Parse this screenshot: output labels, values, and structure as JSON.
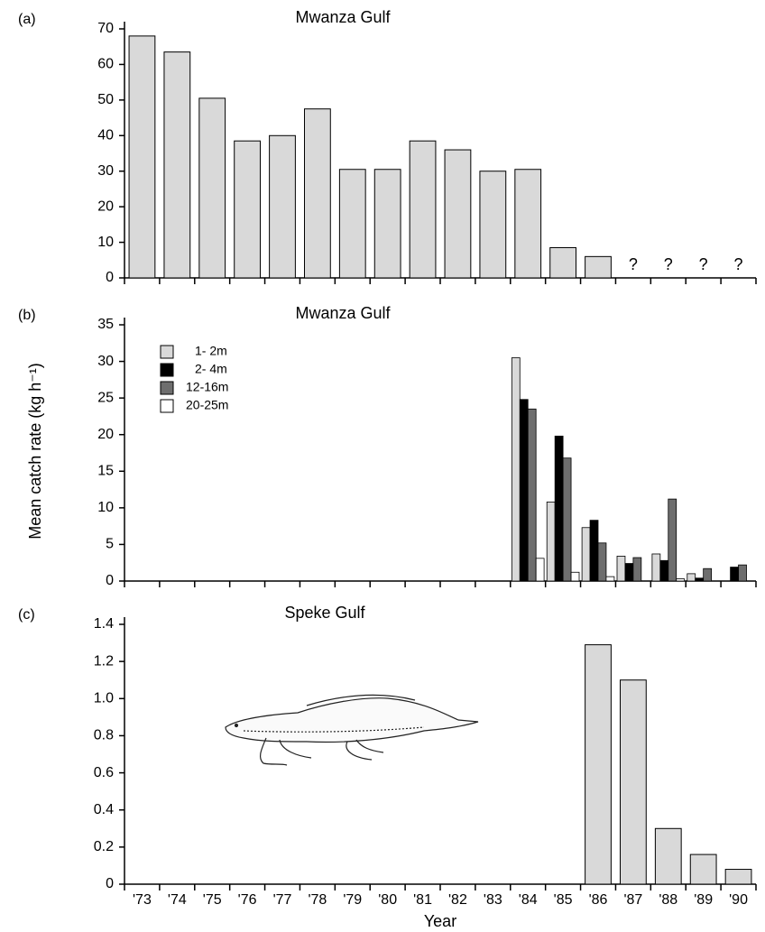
{
  "chart_data": [
    {
      "type": "bar",
      "label": "(a)",
      "title": "Mwanza Gulf",
      "color": "#d9d9d9",
      "values": [
        68,
        63.5,
        50.5,
        38.5,
        40,
        47.5,
        30.5,
        30.5,
        38.5,
        36,
        30,
        30.5,
        8.5,
        6,
        null,
        null,
        null,
        null
      ],
      "value_labels": [
        null,
        null,
        null,
        null,
        null,
        null,
        null,
        null,
        null,
        null,
        null,
        null,
        null,
        null,
        "?",
        "?",
        "?",
        "?"
      ],
      "ylim": [
        0,
        70
      ],
      "yticks": [
        0,
        10,
        20,
        30,
        40,
        50,
        60,
        70
      ]
    },
    {
      "type": "grouped_bar",
      "label": "(b)",
      "title": "Mwanza Gulf",
      "ylabel": "Mean catch rate (kg h⁻¹)",
      "series": [
        {
          "name": "1- 2m",
          "color": "#d9d9d9",
          "values": [
            0,
            0,
            0,
            0,
            0,
            0,
            0,
            0,
            0,
            0,
            0,
            30.5,
            10.8,
            7.3,
            3.4,
            3.7,
            1.0,
            0
          ]
        },
        {
          "name": "2- 4m",
          "color": "#000000",
          "values": [
            0,
            0,
            0,
            0,
            0,
            0,
            0,
            0,
            0,
            0,
            0,
            24.8,
            19.8,
            8.3,
            2.4,
            2.8,
            0.4,
            1.9
          ]
        },
        {
          "name": "12-16m",
          "color": "#6e6e6e",
          "values": [
            0,
            0,
            0,
            0,
            0,
            0,
            0,
            0,
            0,
            0,
            0,
            23.5,
            16.8,
            5.2,
            3.2,
            11.2,
            1.7,
            2.2
          ]
        },
        {
          "name": "20-25m",
          "color": "#ffffff",
          "values": [
            0,
            0,
            0,
            0,
            0,
            0,
            0,
            0,
            0,
            0,
            0,
            3.1,
            1.2,
            0.6,
            0,
            0.3,
            0,
            0
          ]
        }
      ],
      "ylim": [
        0,
        35
      ],
      "yticks": [
        0,
        5,
        10,
        15,
        20,
        25,
        30,
        35
      ]
    },
    {
      "type": "bar",
      "label": "(c)",
      "title": "Speke Gulf",
      "color": "#d9d9d9",
      "xlabel": "Year",
      "categories": [
        "'73",
        "'74",
        "'75",
        "'76",
        "'77",
        "'78",
        "'79",
        "'80",
        "'81",
        "'82",
        "'83",
        "'84",
        "'85",
        "'86",
        "'87",
        "'88",
        "'89",
        "'90"
      ],
      "values": [
        0,
        0,
        0,
        0,
        0,
        0,
        0,
        0,
        0,
        0,
        0,
        0,
        0,
        1.29,
        1.1,
        0.3,
        0.16,
        0.08
      ],
      "ylim": [
        0,
        1.4
      ],
      "yticks": [
        0,
        0.2,
        0.4,
        0.6,
        0.8,
        {
          "value": 1,
          "label": "1.0"
        },
        1.2,
        1.4
      ]
    }
  ]
}
